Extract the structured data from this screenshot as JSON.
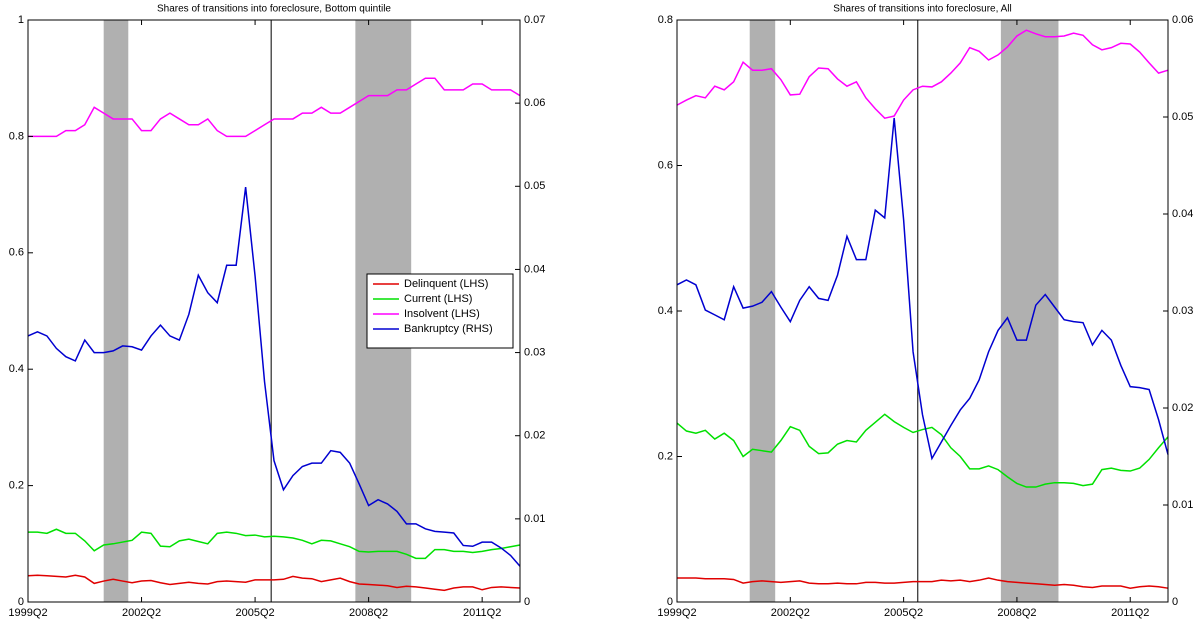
{
  "chart_data": [
    {
      "type": "line",
      "title": "Shares of transitions into foreclosure, Bottom quintile",
      "categories": [
        "1999Q2",
        null,
        null,
        null,
        null,
        null,
        null,
        null,
        null,
        null,
        null,
        null,
        "2002Q2",
        null,
        null,
        null,
        null,
        null,
        null,
        null,
        null,
        null,
        null,
        null,
        "2005Q2",
        null,
        null,
        null,
        null,
        null,
        null,
        null,
        null,
        null,
        null,
        null,
        "2008Q2",
        null,
        null,
        null,
        null,
        null,
        null,
        null,
        null,
        null,
        null,
        null,
        "2011Q2",
        null,
        null,
        null,
        null
      ],
      "ylim": [
        0,
        1
      ],
      "yticks": [
        0,
        0.2,
        0.4,
        0.6,
        0.8,
        1
      ],
      "y2lim": [
        0,
        0.07
      ],
      "y2ticks": [
        0,
        0.01,
        0.02,
        0.03,
        0.04,
        0.05,
        0.06,
        0.07
      ],
      "legend": "center right",
      "shaded_spans": [
        [
          8,
          10.6
        ],
        [
          34.6,
          40.5
        ]
      ],
      "vline": 25.7,
      "series": [
        {
          "name": "Delinquent (LHS)",
          "color": "#e00000",
          "values": [
            0.045,
            0.046,
            0.045,
            0.044,
            0.043,
            0.046,
            0.043,
            0.032,
            0.036,
            0.039,
            0.036,
            0.033,
            0.036,
            0.037,
            0.033,
            0.03,
            0.032,
            0.034,
            0.032,
            0.031,
            0.035,
            0.036,
            0.035,
            0.034,
            0.038,
            0.038,
            0.038,
            0.039,
            0.044,
            0.041,
            0.04,
            0.035,
            0.038,
            0.041,
            0.035,
            0.031,
            0.03,
            0.029,
            0.028,
            0.025,
            0.027,
            0.026,
            0.024,
            0.022,
            0.02,
            0.024,
            0.026,
            0.026,
            0.021,
            0.025,
            0.026,
            0.025,
            0.024
          ]
        },
        {
          "name": "Current (LHS)",
          "color": "#00e000",
          "values": [
            0.12,
            0.12,
            0.118,
            0.125,
            0.118,
            0.118,
            0.105,
            0.088,
            0.098,
            0.1,
            0.103,
            0.106,
            0.12,
            0.118,
            0.096,
            0.095,
            0.105,
            0.108,
            0.104,
            0.1,
            0.118,
            0.12,
            0.118,
            0.114,
            0.115,
            0.112,
            0.113,
            0.112,
            0.11,
            0.106,
            0.1,
            0.106,
            0.105,
            0.1,
            0.095,
            0.087,
            0.086,
            0.087,
            0.087,
            0.087,
            0.082,
            0.075,
            0.075,
            0.09,
            0.09,
            0.087,
            0.087,
            0.085,
            0.087,
            0.09,
            0.092,
            0.095,
            0.098
          ]
        },
        {
          "name": "Insolvent (LHS)",
          "color": "#ff00ff",
          "values": [
            0.8,
            0.8,
            0.8,
            0.8,
            0.81,
            0.81,
            0.82,
            0.85,
            0.84,
            0.83,
            0.83,
            0.83,
            0.81,
            0.81,
            0.83,
            0.84,
            0.83,
            0.82,
            0.82,
            0.83,
            0.81,
            0.8,
            0.8,
            0.8,
            0.81,
            0.82,
            0.83,
            0.83,
            0.83,
            0.84,
            0.84,
            0.85,
            0.84,
            0.84,
            0.85,
            0.86,
            0.87,
            0.87,
            0.87,
            0.88,
            0.88,
            0.89,
            0.9,
            0.9,
            0.88,
            0.88,
            0.88,
            0.89,
            0.89,
            0.88,
            0.88,
            0.88,
            0.87
          ]
        },
        {
          "name": "Bankruptcy (RHS)",
          "color": "#0000d0",
          "axis": "y2",
          "values": [
            0.032,
            0.0325,
            0.032,
            0.0305,
            0.0295,
            0.029,
            0.0315,
            0.03,
            0.03,
            0.0302,
            0.0308,
            0.0307,
            0.0303,
            0.032,
            0.0333,
            0.032,
            0.0315,
            0.0346,
            0.0393,
            0.0372,
            0.036,
            0.0405,
            0.0405,
            0.0499,
            0.0392,
            0.0265,
            0.017,
            0.0135,
            0.0152,
            0.0163,
            0.0167,
            0.0167,
            0.0182,
            0.018,
            0.0167,
            0.0142,
            0.0116,
            0.0123,
            0.0118,
            0.0109,
            0.0094,
            0.0094,
            0.0088,
            0.0085,
            0.0084,
            0.0083,
            0.0068,
            0.0067,
            0.0072,
            0.0072,
            0.0065,
            0.0056,
            0.0043
          ]
        }
      ]
    },
    {
      "type": "line",
      "title": "Shares of transitions into foreclosure, All",
      "categories": [
        "1999Q2",
        null,
        null,
        null,
        null,
        null,
        null,
        null,
        null,
        null,
        null,
        null,
        "2002Q2",
        null,
        null,
        null,
        null,
        null,
        null,
        null,
        null,
        null,
        null,
        null,
        "2005Q2",
        null,
        null,
        null,
        null,
        null,
        null,
        null,
        null,
        null,
        null,
        null,
        "2008Q2",
        null,
        null,
        null,
        null,
        null,
        null,
        null,
        null,
        null,
        null,
        null,
        "2011Q2",
        null,
        null,
        null,
        null
      ],
      "ylim": [
        0,
        0.8
      ],
      "yticks": [
        0,
        0.2,
        0.4,
        0.6,
        0.8
      ],
      "y2lim": [
        0,
        0.06
      ],
      "y2ticks": [
        0,
        0.01,
        0.02,
        0.03,
        0.04,
        0.05,
        0.06
      ],
      "shaded_spans": [
        [
          7.7,
          10.4
        ],
        [
          34.3,
          40.4
        ]
      ],
      "vline": 25.5,
      "series": [
        {
          "color": "#e00000",
          "values": [
            0.033,
            0.033,
            0.033,
            0.032,
            0.032,
            0.032,
            0.031,
            0.026,
            0.028,
            0.029,
            0.028,
            0.027,
            0.028,
            0.029,
            0.026,
            0.025,
            0.025,
            0.026,
            0.025,
            0.025,
            0.027,
            0.027,
            0.026,
            0.026,
            0.027,
            0.028,
            0.028,
            0.028,
            0.03,
            0.029,
            0.03,
            0.028,
            0.03,
            0.033,
            0.03,
            0.028,
            0.027,
            0.026,
            0.025,
            0.024,
            0.023,
            0.024,
            0.023,
            0.021,
            0.02,
            0.022,
            0.022,
            0.022,
            0.019,
            0.021,
            0.022,
            0.021,
            0.019
          ]
        },
        {
          "color": "#00e000",
          "values": [
            0.246,
            0.235,
            0.232,
            0.236,
            0.224,
            0.232,
            0.222,
            0.2,
            0.21,
            0.208,
            0.206,
            0.222,
            0.241,
            0.236,
            0.214,
            0.204,
            0.205,
            0.217,
            0.222,
            0.22,
            0.236,
            0.247,
            0.258,
            0.248,
            0.24,
            0.233,
            0.237,
            0.24,
            0.23,
            0.212,
            0.2,
            0.183,
            0.183,
            0.187,
            0.182,
            0.172,
            0.163,
            0.158,
            0.158,
            0.162,
            0.164,
            0.164,
            0.163,
            0.16,
            0.162,
            0.182,
            0.184,
            0.181,
            0.18,
            0.184,
            0.196,
            0.212,
            0.227
          ]
        },
        {
          "color": "#ff00ff",
          "values": [
            0.683,
            0.69,
            0.696,
            0.693,
            0.709,
            0.704,
            0.715,
            0.742,
            0.731,
            0.731,
            0.733,
            0.718,
            0.697,
            0.698,
            0.722,
            0.734,
            0.733,
            0.719,
            0.709,
            0.715,
            0.693,
            0.678,
            0.665,
            0.668,
            0.69,
            0.704,
            0.709,
            0.708,
            0.715,
            0.727,
            0.741,
            0.762,
            0.757,
            0.745,
            0.752,
            0.763,
            0.778,
            0.786,
            0.781,
            0.777,
            0.777,
            0.778,
            0.782,
            0.779,
            0.766,
            0.759,
            0.762,
            0.768,
            0.767,
            0.756,
            0.741,
            0.727,
            0.731
          ]
        },
        {
          "color": "#0000d0",
          "axis": "y2",
          "values": [
            0.0327,
            0.0332,
            0.0327,
            0.0301,
            0.0296,
            0.0291,
            0.0325,
            0.0303,
            0.0305,
            0.0309,
            0.032,
            0.0304,
            0.0289,
            0.0311,
            0.0325,
            0.0313,
            0.0311,
            0.0337,
            0.0377,
            0.0353,
            0.0353,
            0.0404,
            0.0396,
            0.0499,
            0.0394,
            0.0258,
            0.0193,
            0.0148,
            0.0165,
            0.0182,
            0.0198,
            0.021,
            0.0229,
            0.0258,
            0.028,
            0.0293,
            0.027,
            0.027,
            0.0306,
            0.0317,
            0.0304,
            0.0291,
            0.0289,
            0.0288,
            0.0265,
            0.028,
            0.027,
            0.0244,
            0.0222,
            0.0221,
            0.0219,
            0.0188,
            0.0152
          ]
        }
      ]
    }
  ]
}
